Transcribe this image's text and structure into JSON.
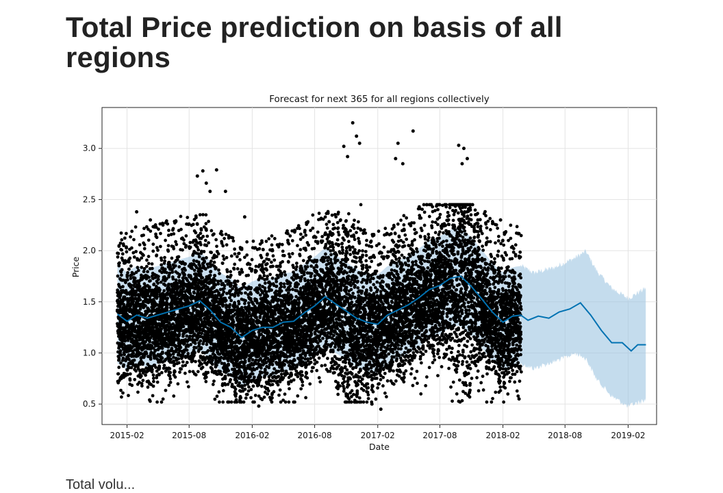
{
  "page": {
    "title": "Total Price prediction on basis of all regions",
    "next_text": "Total volu..."
  },
  "chart_data": {
    "type": "scatter",
    "title": "Forecast for next 365 for all regions collectively",
    "xlabel": "Date",
    "ylabel": "Price",
    "xlim": [
      "2014-11-20",
      "2019-04-25"
    ],
    "ylim": [
      0.3,
      3.4
    ],
    "x_ticks": [
      "2015-02",
      "2015-08",
      "2016-02",
      "2016-08",
      "2017-02",
      "2017-08",
      "2018-02",
      "2018-08",
      "2019-02"
    ],
    "y_ticks": [
      0.5,
      1.0,
      1.5,
      2.0,
      2.5,
      3.0
    ],
    "grid": true,
    "colors": {
      "points": "#000000",
      "forecast_line": "#0072B2",
      "interval_band": "#9ec5e2"
    },
    "observed_range": [
      "2015-01-04",
      "2018-03-25"
    ],
    "forecast_range": [
      "2018-03-25",
      "2019-03-25"
    ],
    "forecast": {
      "name": "yhat",
      "x": [
        "2015-01-04",
        "2015-02-01",
        "2015-03-01",
        "2015-04-01",
        "2015-05-01",
        "2015-06-01",
        "2015-07-01",
        "2015-08-01",
        "2015-09-01",
        "2015-10-01",
        "2015-11-01",
        "2015-12-01",
        "2016-01-01",
        "2016-02-01",
        "2016-03-01",
        "2016-04-01",
        "2016-05-01",
        "2016-06-01",
        "2016-07-01",
        "2016-08-01",
        "2016-09-01",
        "2016-10-01",
        "2016-11-01",
        "2016-12-01",
        "2017-01-01",
        "2017-02-01",
        "2017-03-01",
        "2017-04-01",
        "2017-05-01",
        "2017-06-01",
        "2017-07-01",
        "2017-08-01",
        "2017-09-01",
        "2017-10-01",
        "2017-11-01",
        "2017-12-01",
        "2018-01-01",
        "2018-02-01",
        "2018-03-01",
        "2018-03-25",
        "2018-04-15",
        "2018-05-15",
        "2018-06-15",
        "2018-07-15",
        "2018-08-15",
        "2018-09-15",
        "2018-10-15",
        "2018-11-15",
        "2018-12-15",
        "2019-01-15",
        "2019-02-10",
        "2019-03-01",
        "2019-03-25"
      ],
      "y": [
        1.38,
        1.31,
        1.37,
        1.34,
        1.37,
        1.4,
        1.43,
        1.46,
        1.51,
        1.42,
        1.3,
        1.25,
        1.15,
        1.22,
        1.25,
        1.25,
        1.3,
        1.31,
        1.39,
        1.46,
        1.55,
        1.48,
        1.41,
        1.34,
        1.3,
        1.28,
        1.37,
        1.42,
        1.47,
        1.54,
        1.62,
        1.66,
        1.73,
        1.75,
        1.65,
        1.53,
        1.4,
        1.3,
        1.36,
        1.37,
        1.32,
        1.36,
        1.34,
        1.4,
        1.43,
        1.49,
        1.37,
        1.22,
        1.1,
        1.1,
        1.02,
        1.08,
        1.08
      ]
    },
    "interval": {
      "x": [
        "2018-03-25",
        "2018-05-01",
        "2018-07-01",
        "2018-09-01",
        "2018-10-01",
        "2018-11-01",
        "2018-12-15",
        "2019-02-01",
        "2019-03-25"
      ],
      "upper": [
        1.85,
        1.78,
        1.83,
        1.93,
        1.99,
        1.8,
        1.63,
        1.53,
        1.63
      ],
      "lower": [
        0.9,
        0.85,
        0.92,
        1.0,
        0.95,
        0.75,
        0.58,
        0.48,
        0.55
      ]
    },
    "observed_samples": [
      {
        "x": "2015-09-10",
        "y": 2.78
      },
      {
        "x": "2015-09-20",
        "y": 2.66
      },
      {
        "x": "2015-10-01",
        "y": 2.58
      },
      {
        "x": "2015-10-20",
        "y": 2.79
      },
      {
        "x": "2015-11-15",
        "y": 2.58
      },
      {
        "x": "2015-03-01",
        "y": 2.38
      },
      {
        "x": "2015-08-25",
        "y": 2.73
      },
      {
        "x": "2016-11-20",
        "y": 3.25
      },
      {
        "x": "2016-12-01",
        "y": 3.12
      },
      {
        "x": "2016-10-25",
        "y": 3.02
      },
      {
        "x": "2016-11-05",
        "y": 2.92
      },
      {
        "x": "2016-12-10",
        "y": 3.05
      },
      {
        "x": "2017-04-01",
        "y": 3.05
      },
      {
        "x": "2017-05-15",
        "y": 3.17
      },
      {
        "x": "2017-03-25",
        "y": 2.9
      },
      {
        "x": "2017-04-15",
        "y": 2.85
      },
      {
        "x": "2017-09-25",
        "y": 3.03
      },
      {
        "x": "2017-10-10",
        "y": 3.0
      },
      {
        "x": "2017-10-20",
        "y": 2.9
      },
      {
        "x": "2017-10-05",
        "y": 2.85
      },
      {
        "x": "2017-02-10",
        "y": 0.45
      },
      {
        "x": "2017-01-15",
        "y": 0.5
      },
      {
        "x": "2016-02-20",
        "y": 0.48
      },
      {
        "x": "2018-03-20",
        "y": 0.55
      },
      {
        "x": "2016-01-10",
        "y": 2.33
      },
      {
        "x": "2015-04-10",
        "y": 2.3
      },
      {
        "x": "2017-11-20",
        "y": 2.3
      },
      {
        "x": "2018-01-25",
        "y": 2.3
      }
    ]
  }
}
